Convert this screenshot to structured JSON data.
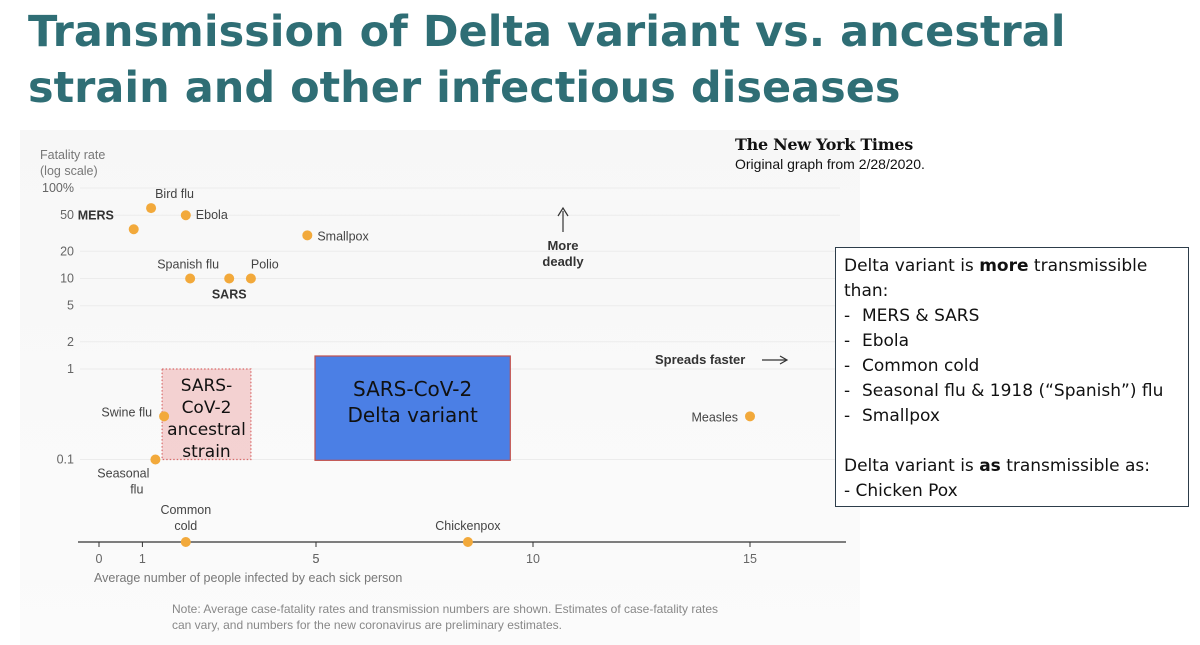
{
  "title": "Transmission of Delta variant vs. ancestral strain and other infectious diseases",
  "nyt_logo": "The New York Times",
  "source_note": "Original graph from 2/28/2020.",
  "chart_data": {
    "type": "scatter",
    "y_axis_label": [
      "Fatality rate",
      "(log scale)"
    ],
    "x_axis_label": "Average number of people infected by each sick person",
    "y_scale": "log",
    "y_ticks": [
      "100%",
      "50",
      "20",
      "10",
      "5",
      "2",
      "1",
      "0.1"
    ],
    "y_tick_values": [
      100,
      50,
      20,
      10,
      5,
      2,
      1,
      0.1
    ],
    "x_ticks": [
      "0",
      "1",
      "5",
      "5",
      "10",
      "15"
    ],
    "x_tick_values": [
      0,
      1,
      5,
      5,
      10,
      15
    ],
    "xlim": [
      -0.5,
      17.5
    ],
    "grid": true,
    "points": [
      {
        "label": "Bird flu",
        "x": 1.2,
        "y": 60,
        "bold": false
      },
      {
        "label": "MERS",
        "x": 0.8,
        "y": 35,
        "bold": true
      },
      {
        "label": "Ebola",
        "x": 2.0,
        "y": 50,
        "bold": false
      },
      {
        "label": "Smallpox",
        "x": 4.8,
        "y": 30,
        "bold": false
      },
      {
        "label": "Spanish flu",
        "x": 2.1,
        "y": 10,
        "bold": false
      },
      {
        "label": "SARS",
        "x": 3.0,
        "y": 10,
        "bold": true
      },
      {
        "label": "Polio",
        "x": 3.5,
        "y": 10,
        "bold": false
      },
      {
        "label": "Swine flu",
        "x": 1.5,
        "y": 0.3,
        "bold": false
      },
      {
        "label": "Seasonal flu",
        "x": 1.3,
        "y": 0.1,
        "bold": false
      },
      {
        "label": "Measles",
        "x": 15.0,
        "y": 0.3,
        "bold": false
      },
      {
        "label": "Common cold",
        "x": 2.0,
        "y": null,
        "bold": false
      },
      {
        "label": "Chickenpox",
        "x": 8.5,
        "y": null,
        "bold": false
      }
    ],
    "annotations": {
      "more_deadly": [
        "More",
        "deadly"
      ],
      "spreads_faster": "Spreads faster",
      "note": [
        "Note: Average case-fatality rates and transmission numbers are shown. Estimates of case-fatality rates",
        "can vary, and numbers for the new coronavirus are preliminary estimates."
      ]
    },
    "overlays": [
      {
        "label": [
          "SARS-",
          "CoV-2",
          "ancestral",
          "strain"
        ],
        "x_range": [
          1.5,
          3.5
        ],
        "y_range": [
          0.1,
          1
        ],
        "style": "dotted-pink"
      },
      {
        "label": [
          "SARS-CoV-2",
          "Delta variant"
        ],
        "x_range": [
          5,
          9.5
        ],
        "y_range": [
          0.12,
          1
        ],
        "style": "blue"
      }
    ]
  },
  "callout": {
    "line1_pre": "Delta variant is ",
    "line1_bold": "more",
    "line1_post": " transmissible",
    "line2": "than:",
    "items": [
      "MERS & SARS",
      "Ebola",
      "Common cold",
      "Seasonal flu & 1918 (“Spanish”) flu",
      "Smallpox"
    ],
    "line3_pre": "Delta variant is ",
    "line3_bold": "as",
    "line3_post": " transmissible as:",
    "line4": "- Chicken Pox"
  },
  "colors": {
    "title": "#2f6e75",
    "point": "#f2a93b",
    "delta_box": "#4b7fe5",
    "ancestral_box": "#f2caca"
  }
}
